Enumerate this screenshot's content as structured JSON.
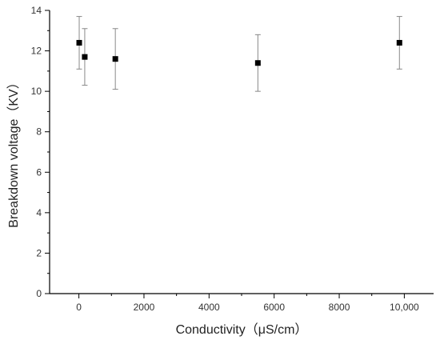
{
  "chart_data": {
    "type": "scatter",
    "title": "",
    "xlabel": "Conductivity（μS/cm）",
    "ylabel": "Breakdown voltage（KV）",
    "xlim": [
      -900,
      10900
    ],
    "ylim": [
      0,
      14
    ],
    "xticks": [
      0,
      2000,
      4000,
      6000,
      8000,
      10000
    ],
    "xtick_labels": [
      "0",
      "2000",
      "4000",
      "6000",
      "8000",
      "10,000"
    ],
    "yticks": [
      0,
      2,
      4,
      6,
      8,
      10,
      12,
      14
    ],
    "ytick_labels": [
      "0",
      "2",
      "4",
      "6",
      "8",
      "10",
      "12",
      "14"
    ],
    "grid": false,
    "series": [
      {
        "marker": "square",
        "color": "#000000",
        "error_bar_color": "#888888",
        "points": [
          {
            "x": 10,
            "y": 12.4,
            "err": 1.3
          },
          {
            "x": 180,
            "y": 11.7,
            "err": 1.4
          },
          {
            "x": 1120,
            "y": 11.6,
            "err": 1.5
          },
          {
            "x": 5500,
            "y": 11.4,
            "err": 1.4
          },
          {
            "x": 9850,
            "y": 12.4,
            "err": 1.3
          }
        ]
      }
    ]
  }
}
